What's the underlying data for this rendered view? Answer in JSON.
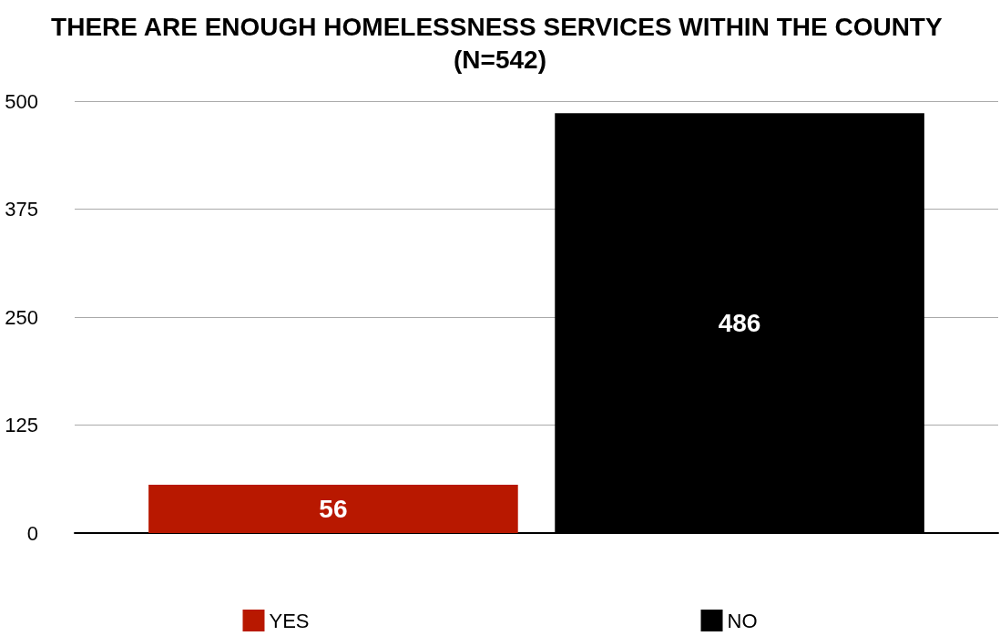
{
  "chart_data": {
    "type": "bar",
    "title": "THERE ARE ENOUGH HOMELESSNESS SERVICES WITHIN THE COUNTY (N=542)",
    "categories": [
      null
    ],
    "series": [
      {
        "name": "YES",
        "color": "#b81800",
        "values": [
          56
        ]
      },
      {
        "name": "NO",
        "color": "#000000",
        "values": [
          486
        ]
      }
    ],
    "ylim": [
      0,
      500
    ],
    "yticks": [
      0,
      125,
      250,
      375,
      500
    ],
    "grid": "y",
    "legend": "bottom",
    "data_labels": true
  }
}
